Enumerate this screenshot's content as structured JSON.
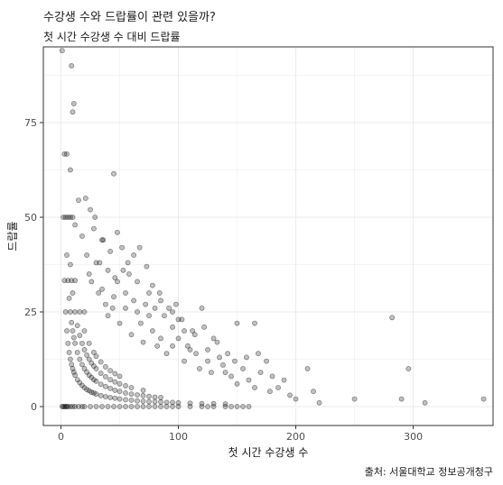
{
  "chart_data": {
    "type": "scatter",
    "title": "수강생 수와 드랍률이 관련 있을까?",
    "subtitle": "첫 시간 수강생 수 대비 드랍률",
    "xlabel": "첫 시간 수강생 수",
    "ylabel": "드랍률",
    "caption": "출처: 서울대학교 정보공개청구",
    "xlim": [
      -15,
      368
    ],
    "ylim": [
      -5,
      95
    ],
    "x_ticks": [
      0,
      100,
      200,
      300
    ],
    "y_ticks": [
      0,
      25,
      50,
      75
    ],
    "x_tick_labels": [
      "0",
      "100",
      "200",
      "300"
    ],
    "y_tick_labels": [
      "0",
      "25",
      "50",
      "75"
    ],
    "grid": true,
    "point_color": "#000000",
    "point_opacity": 0.25,
    "panel_border_color": "#333333",
    "grid_color": "#ebebeb",
    "points": [
      [
        1,
        0
      ],
      [
        2,
        0
      ],
      [
        3,
        0
      ],
      [
        4,
        0
      ],
      [
        5,
        0
      ],
      [
        6,
        0
      ],
      [
        8,
        0
      ],
      [
        10,
        0
      ],
      [
        12,
        0
      ],
      [
        15,
        0
      ],
      [
        18,
        0
      ],
      [
        20,
        0
      ],
      [
        25,
        0
      ],
      [
        30,
        0
      ],
      [
        35,
        0
      ],
      [
        40,
        0
      ],
      [
        45,
        0
      ],
      [
        50,
        0
      ],
      [
        55,
        0
      ],
      [
        60,
        0
      ],
      [
        65,
        0
      ],
      [
        70,
        0
      ],
      [
        75,
        0
      ],
      [
        80,
        0
      ],
      [
        85,
        0
      ],
      [
        90,
        0
      ],
      [
        95,
        0
      ],
      [
        100,
        0
      ],
      [
        110,
        0
      ],
      [
        120,
        0
      ],
      [
        125,
        0
      ],
      [
        130,
        0
      ],
      [
        140,
        0
      ],
      [
        145,
        0
      ],
      [
        150,
        0
      ],
      [
        155,
        0
      ],
      [
        160,
        0
      ],
      [
        1,
        94
      ],
      [
        2,
        50
      ],
      [
        3,
        33.3
      ],
      [
        4,
        25
      ],
      [
        4,
        50
      ],
      [
        5,
        20
      ],
      [
        5,
        40
      ],
      [
        6,
        16.7
      ],
      [
        6,
        33.3
      ],
      [
        6,
        50
      ],
      [
        7,
        14.3
      ],
      [
        7,
        28.6
      ],
      [
        8,
        12.5
      ],
      [
        8,
        25
      ],
      [
        8,
        37.5
      ],
      [
        8,
        50
      ],
      [
        9,
        11.1
      ],
      [
        9,
        22.2
      ],
      [
        9,
        33.3
      ],
      [
        10,
        10
      ],
      [
        10,
        20
      ],
      [
        10,
        30
      ],
      [
        10,
        50
      ],
      [
        11,
        9.1
      ],
      [
        11,
        18.2
      ],
      [
        12,
        8.3
      ],
      [
        12,
        16.7
      ],
      [
        12,
        25
      ],
      [
        12,
        33.3
      ],
      [
        14,
        7.1
      ],
      [
        14,
        14.3
      ],
      [
        14,
        21.4
      ],
      [
        16,
        6.3
      ],
      [
        16,
        12.5
      ],
      [
        16,
        18.8
      ],
      [
        16,
        25
      ],
      [
        18,
        5.6
      ],
      [
        18,
        11.1
      ],
      [
        18,
        16.7
      ],
      [
        20,
        5
      ],
      [
        20,
        10
      ],
      [
        20,
        15
      ],
      [
        20,
        20
      ],
      [
        20,
        25
      ],
      [
        22,
        4.5
      ],
      [
        22,
        9.1
      ],
      [
        22,
        13.6
      ],
      [
        24,
        4.2
      ],
      [
        24,
        8.3
      ],
      [
        24,
        12.5
      ],
      [
        24,
        16.7
      ],
      [
        26,
        3.8
      ],
      [
        26,
        7.7
      ],
      [
        26,
        11.5
      ],
      [
        28,
        3.6
      ],
      [
        28,
        7.1
      ],
      [
        28,
        10.7
      ],
      [
        28,
        14.3
      ],
      [
        30,
        3.3
      ],
      [
        30,
        6.7
      ],
      [
        30,
        10
      ],
      [
        30,
        13.3
      ],
      [
        34,
        2.9
      ],
      [
        34,
        5.9
      ],
      [
        34,
        8.8
      ],
      [
        34,
        11.8
      ],
      [
        38,
        2.6
      ],
      [
        38,
        5.3
      ],
      [
        38,
        7.9
      ],
      [
        38,
        10.5
      ],
      [
        42,
        2.4
      ],
      [
        42,
        4.8
      ],
      [
        42,
        7.1
      ],
      [
        42,
        9.5
      ],
      [
        46,
        2.2
      ],
      [
        46,
        4.3
      ],
      [
        46,
        6.5
      ],
      [
        46,
        8.7
      ],
      [
        50,
        2
      ],
      [
        50,
        4
      ],
      [
        50,
        6
      ],
      [
        50,
        8
      ],
      [
        55,
        1.8
      ],
      [
        55,
        3.6
      ],
      [
        55,
        5.5
      ],
      [
        60,
        1.7
      ],
      [
        60,
        3.3
      ],
      [
        60,
        5
      ],
      [
        65,
        1.5
      ],
      [
        65,
        3.1
      ],
      [
        70,
        1.4
      ],
      [
        70,
        2.9
      ],
      [
        70,
        4.3
      ],
      [
        75,
        1.3
      ],
      [
        75,
        2.7
      ],
      [
        80,
        1.3
      ],
      [
        80,
        2.5
      ],
      [
        85,
        1.2
      ],
      [
        85,
        2.4
      ],
      [
        90,
        1.1
      ],
      [
        95,
        1.1
      ],
      [
        100,
        1
      ],
      [
        110,
        0.9
      ],
      [
        120,
        0.8
      ],
      [
        130,
        0.8
      ],
      [
        140,
        0.7
      ],
      [
        3,
        66.7
      ],
      [
        5,
        66.7
      ],
      [
        9,
        90
      ],
      [
        10,
        77.8
      ],
      [
        11,
        80
      ],
      [
        8,
        62.5
      ],
      [
        45,
        61.5
      ],
      [
        15,
        54.5
      ],
      [
        21,
        55
      ],
      [
        25,
        52
      ],
      [
        12,
        48
      ],
      [
        18,
        45
      ],
      [
        28,
        47
      ],
      [
        36,
        44
      ],
      [
        48,
        46
      ],
      [
        52,
        42
      ],
      [
        22,
        40
      ],
      [
        30,
        38
      ],
      [
        40,
        36
      ],
      [
        58,
        35
      ],
      [
        65,
        33
      ],
      [
        26,
        33
      ],
      [
        35,
        31
      ],
      [
        45,
        29
      ],
      [
        55,
        30
      ],
      [
        62,
        28
      ],
      [
        72,
        27
      ],
      [
        80,
        26
      ],
      [
        40,
        24
      ],
      [
        50,
        22
      ],
      [
        68,
        22
      ],
      [
        78,
        20
      ],
      [
        88,
        24
      ],
      [
        95,
        21
      ],
      [
        100,
        18
      ],
      [
        108,
        16
      ],
      [
        115,
        14
      ],
      [
        125,
        15
      ],
      [
        135,
        13
      ],
      [
        60,
        19
      ],
      [
        70,
        17
      ],
      [
        82,
        16
      ],
      [
        90,
        14
      ],
      [
        105,
        12
      ],
      [
        118,
        10
      ],
      [
        128,
        9
      ],
      [
        138,
        11
      ],
      [
        145,
        8
      ],
      [
        150,
        6
      ],
      [
        160,
        7
      ],
      [
        170,
        9
      ],
      [
        112,
        20
      ],
      [
        120,
        26
      ],
      [
        130,
        18
      ],
      [
        100,
        23
      ],
      [
        150,
        22
      ],
      [
        165,
        22
      ],
      [
        175,
        12
      ],
      [
        185,
        5
      ],
      [
        195,
        3
      ],
      [
        200,
        2
      ],
      [
        210,
        10
      ],
      [
        215,
        4
      ],
      [
        220,
        1
      ],
      [
        250,
        2
      ],
      [
        282,
        23.5
      ],
      [
        290,
        2
      ],
      [
        296,
        10
      ],
      [
        310,
        1
      ],
      [
        360,
        2
      ],
      [
        57,
        38
      ],
      [
        62,
        40
      ],
      [
        75,
        30
      ],
      [
        85,
        28
      ],
      [
        95,
        25
      ],
      [
        105,
        20
      ],
      [
        55,
        26
      ],
      [
        65,
        25
      ],
      [
        75,
        24
      ],
      [
        85,
        18
      ],
      [
        95,
        16
      ],
      [
        110,
        15
      ],
      [
        125,
        12
      ],
      [
        140,
        9
      ],
      [
        155,
        10
      ],
      [
        165,
        5
      ],
      [
        178,
        4
      ],
      [
        32,
        30
      ],
      [
        38,
        27
      ],
      [
        44,
        26
      ],
      [
        48,
        33
      ],
      [
        53,
        36
      ],
      [
        42,
        41
      ],
      [
        35,
        44
      ],
      [
        29,
        50
      ],
      [
        24,
        35
      ],
      [
        33,
        38
      ],
      [
        46,
        34
      ],
      [
        67,
        42
      ],
      [
        73,
        37
      ],
      [
        78,
        32
      ],
      [
        84,
        30
      ],
      [
        92,
        26
      ],
      [
        98,
        27
      ],
      [
        103,
        23
      ],
      [
        114,
        19
      ],
      [
        122,
        21
      ],
      [
        133,
        17
      ],
      [
        142,
        14
      ],
      [
        148,
        12
      ],
      [
        158,
        13
      ],
      [
        168,
        14
      ],
      [
        180,
        8
      ],
      [
        190,
        7
      ]
    ]
  }
}
